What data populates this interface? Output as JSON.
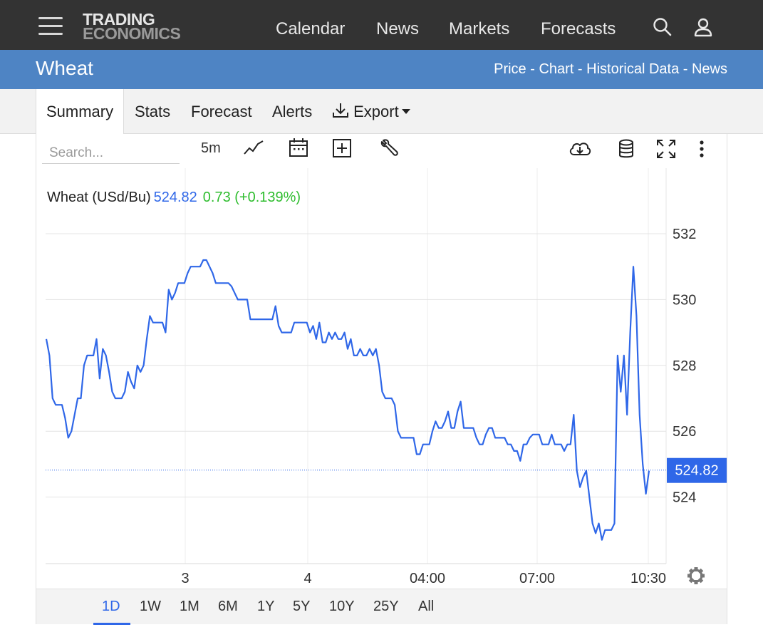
{
  "nav": {
    "logo_line1": "TRADING",
    "logo_line2": "ECONOMICS",
    "links": [
      "Calendar",
      "News",
      "Markets",
      "Forecasts"
    ]
  },
  "band": {
    "title": "Wheat",
    "links": [
      "Price",
      "Chart",
      "Historical Data",
      "News"
    ],
    "separator": " - "
  },
  "tabs": {
    "summary": "Summary",
    "stats": "Stats",
    "forecast": "Forecast",
    "alerts": "Alerts",
    "export": "Export"
  },
  "toolbar": {
    "search_placeholder": "Search...",
    "interval": "5m"
  },
  "legend": {
    "name": "Wheat (USd/Bu)",
    "price": "524.82",
    "change": "0.73 (+0.139%)"
  },
  "ranges": [
    "1D",
    "1W",
    "1M",
    "6M",
    "1Y",
    "5Y",
    "10Y",
    "25Y",
    "All"
  ],
  "active_range": "1D",
  "colors": {
    "line": "#2f67e8",
    "positive": "#2ebd2e",
    "nav_bg": "#333333",
    "band_bg": "#4e84c4"
  },
  "chart_data": {
    "type": "line",
    "title": "Wheat (USd/Bu)",
    "xlabel": "",
    "ylabel": "",
    "x_ticks": [
      "3",
      "4",
      "04:00",
      "07:00",
      "10:30"
    ],
    "y_ticks": [
      532,
      530,
      528,
      526,
      524
    ],
    "ylim": [
      522,
      533.8
    ],
    "last_price": 524.82,
    "last_price_label": "524.82",
    "grid": true,
    "series": [
      {
        "name": "Wheat",
        "values": [
          528.8,
          528.3,
          527.0,
          526.8,
          526.8,
          526.8,
          526.4,
          525.8,
          526.0,
          526.5,
          527.0,
          527.0,
          528.0,
          528.3,
          528.3,
          528.3,
          528.8,
          527.6,
          528.5,
          528.3,
          527.8,
          527.2,
          527.0,
          527.0,
          527.0,
          527.2,
          527.8,
          527.5,
          527.3,
          528.0,
          527.8,
          528.0,
          528.8,
          529.5,
          529.3,
          529.3,
          529.3,
          529.3,
          529.0,
          530.3,
          530.0,
          530.2,
          530.5,
          530.5,
          530.5,
          530.8,
          531.0,
          531.0,
          531.0,
          531.0,
          531.2,
          531.2,
          531.0,
          530.8,
          530.5,
          530.5,
          530.5,
          530.5,
          530.5,
          530.4,
          530.2,
          530.0,
          530.0,
          530.0,
          530.0,
          529.4,
          529.4,
          529.4,
          529.4,
          529.4,
          529.4,
          529.4,
          529.4,
          529.8,
          529.2,
          529.0,
          529.0,
          529.0,
          529.0,
          529.3,
          529.3,
          529.3,
          529.3,
          529.3,
          529.0,
          529.2,
          528.8,
          529.3,
          528.7,
          528.7,
          529.0,
          528.8,
          529.0,
          528.8,
          528.8,
          529.0,
          528.5,
          528.8,
          528.3,
          528.3,
          528.5,
          528.3,
          528.3,
          528.5,
          528.3,
          528.5,
          528.0,
          527.2,
          527.0,
          527.0,
          527.0,
          526.8,
          526.0,
          525.8,
          525.8,
          525.8,
          525.8,
          525.8,
          525.3,
          525.3,
          525.6,
          525.6,
          525.6,
          526.0,
          526.3,
          526.1,
          526.1,
          526.3,
          526.6,
          526.1,
          526.1,
          526.6,
          526.9,
          526.1,
          526.1,
          526.1,
          526.1,
          525.8,
          525.6,
          525.6,
          525.9,
          526.1,
          526.1,
          525.8,
          525.8,
          525.8,
          525.8,
          525.6,
          525.6,
          525.4,
          525.4,
          525.1,
          525.6,
          525.6,
          525.8,
          525.9,
          525.9,
          525.9,
          525.6,
          525.6,
          525.6,
          525.9,
          525.6,
          525.6,
          525.6,
          525.4,
          525.6,
          525.6,
          526.5,
          524.8,
          524.3,
          524.6,
          524.8,
          524.0,
          523.2,
          522.9,
          523.2,
          522.7,
          523.0,
          523.0,
          523.0,
          523.2,
          528.3,
          527.2,
          528.3,
          526.5,
          529.0,
          531.0,
          529.5,
          526.5,
          525.0,
          524.1,
          524.8
        ]
      }
    ]
  }
}
